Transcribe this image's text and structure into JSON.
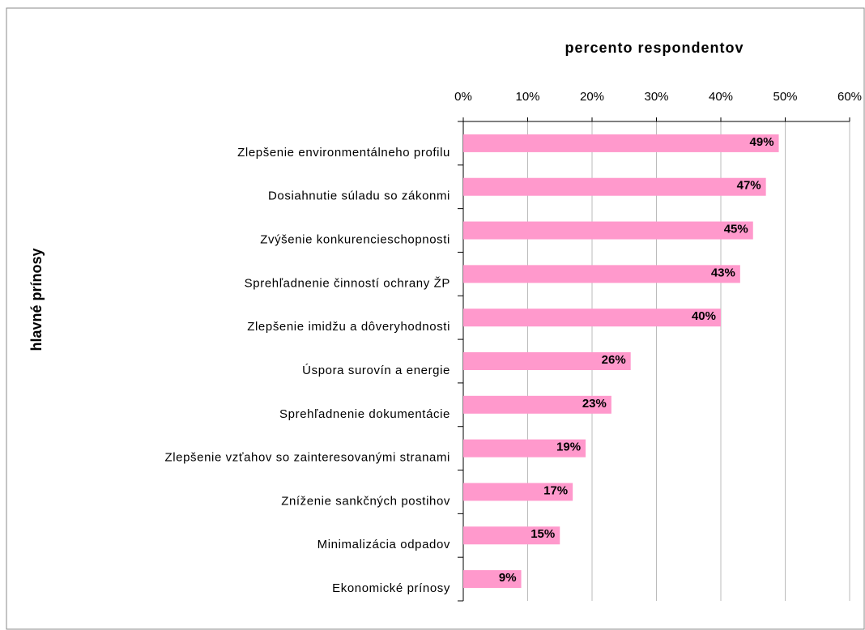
{
  "chart_data": {
    "type": "barh",
    "title": "percento respondentov",
    "y_label": "hlavné prínosy",
    "categories": [
      "Zlepšenie environmentálneho profilu",
      "Dosiahnutie súladu so zákonmi",
      "Zvýšenie konkurencieschopnosti",
      "Sprehľadnenie činností ochrany ŽP",
      "Zlepšenie imidžu a dôveryhodnosti",
      "Úspora surovín a energie",
      "Sprehľadnenie dokumentácie",
      "Zlepšenie vzťahov so zainteresovanými stranami",
      "Zníženie sankčných postihov",
      "Minimalizácia odpadov",
      "Ekonomické prínosy"
    ],
    "values": [
      49,
      47,
      45,
      43,
      40,
      26,
      23,
      19,
      17,
      15,
      9
    ],
    "value_labels": [
      "49%",
      "47%",
      "45%",
      "43%",
      "40%",
      "26%",
      "23%",
      "19%",
      "17%",
      "15%",
      "9%"
    ],
    "color": "#ff99cc",
    "xlim": [
      0,
      60
    ],
    "xticks": [
      {
        "value": 0,
        "label": "0%"
      },
      {
        "value": 10,
        "label": "10%"
      },
      {
        "value": 20,
        "label": "20%"
      },
      {
        "value": 30,
        "label": "30%"
      },
      {
        "value": 40,
        "label": "40%"
      },
      {
        "value": 50,
        "label": "50%"
      },
      {
        "value": 60,
        "label": "60%"
      }
    ],
    "grid": true
  }
}
